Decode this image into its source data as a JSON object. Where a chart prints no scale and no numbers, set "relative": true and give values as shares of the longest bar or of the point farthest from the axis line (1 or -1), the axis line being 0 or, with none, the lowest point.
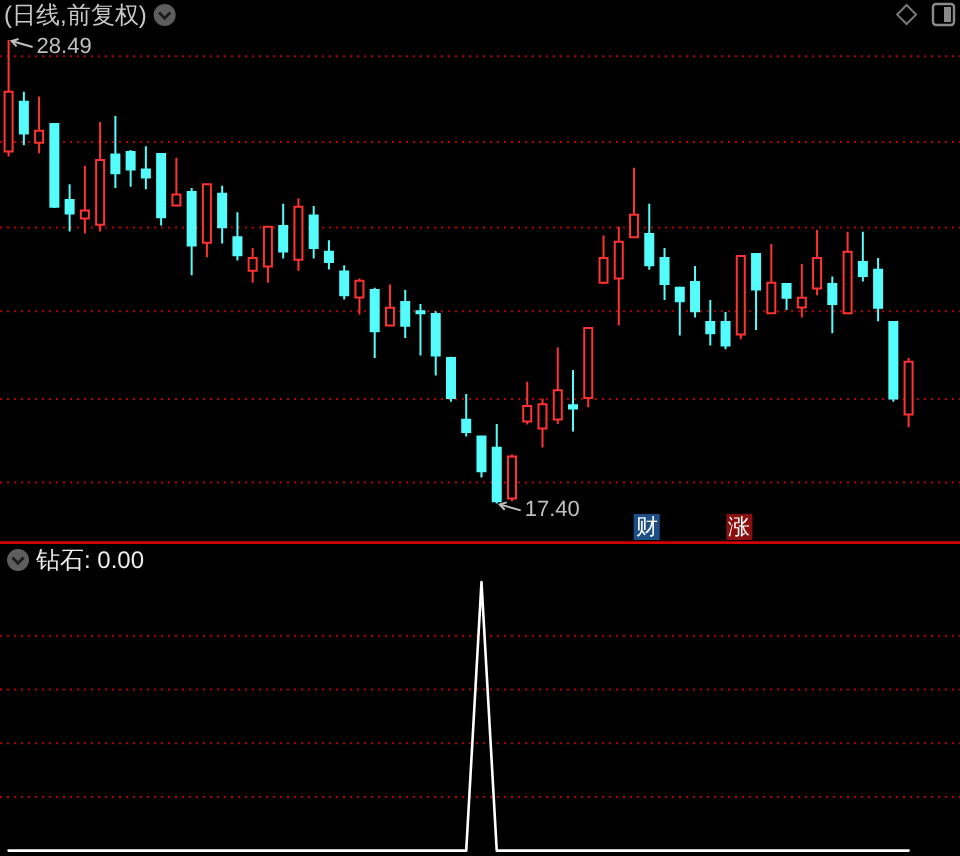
{
  "chart_data": [
    {
      "type": "candlestick",
      "title": "(日线,前复权)",
      "categories": [
        null,
        null,
        null,
        null,
        null,
        null,
        null,
        null,
        null,
        null,
        null,
        null,
        null,
        null,
        null,
        null,
        null,
        null,
        null,
        null,
        null,
        null,
        null,
        null,
        null,
        null,
        null,
        null,
        null,
        null,
        null,
        null,
        null,
        null,
        null,
        null,
        null,
        null,
        null,
        null,
        null,
        null,
        null,
        null,
        null,
        null,
        null,
        null,
        null,
        null,
        null,
        null,
        null,
        null,
        null,
        null,
        null,
        null,
        null,
        null
      ],
      "ohlc": [
        [
          25.82,
          28.49,
          25.7,
          27.25
        ],
        [
          27.01,
          27.25,
          25.97,
          26.25
        ],
        [
          26.03,
          27.14,
          25.78,
          26.32
        ],
        [
          26.48,
          26.48,
          24.47,
          24.5
        ],
        [
          24.66,
          25.04,
          23.91,
          24.34
        ],
        [
          24.22,
          25.48,
          23.86,
          24.41
        ],
        [
          24.07,
          26.53,
          23.91,
          25.62
        ],
        [
          25.75,
          26.67,
          24.95,
          25.3
        ],
        [
          25.81,
          25.86,
          24.98,
          25.39
        ],
        [
          25.39,
          25.95,
          24.92,
          25.2
        ],
        [
          25.76,
          25.76,
          24.05,
          24.25
        ],
        [
          24.53,
          25.67,
          24.53,
          24.79
        ],
        [
          24.85,
          24.95,
          22.86,
          23.57
        ],
        [
          23.64,
          25.04,
          23.29,
          25.04
        ],
        [
          24.81,
          25.0,
          23.62,
          24.01
        ],
        [
          23.77,
          24.37,
          23.21,
          23.34
        ],
        [
          22.97,
          23.51,
          22.68,
          23.27
        ],
        [
          23.07,
          24.02,
          22.68,
          24.02
        ],
        [
          24.04,
          24.57,
          23.26,
          23.43
        ],
        [
          23.23,
          24.7,
          22.97,
          24.5
        ],
        [
          24.29,
          24.52,
          23.26,
          23.51
        ],
        [
          23.42,
          23.7,
          23.0,
          23.18
        ],
        [
          22.95,
          23.1,
          22.28,
          22.38
        ],
        [
          22.33,
          22.78,
          21.92,
          22.73
        ],
        [
          22.51,
          22.56,
          20.88,
          21.52
        ],
        [
          21.66,
          22.64,
          21.66,
          22.08
        ],
        [
          22.22,
          22.51,
          21.36,
          21.65
        ],
        [
          22.0,
          22.17,
          20.94,
          21.95
        ],
        [
          21.93,
          22.0,
          20.46,
          20.94
        ],
        [
          20.88,
          20.91,
          19.83,
          19.92
        ],
        [
          19.4,
          20.02,
          19.0,
          19.11
        ],
        [
          19.0,
          19.0,
          18.02,
          18.17
        ],
        [
          18.73,
          19.3,
          17.4,
          17.45
        ],
        [
          17.52,
          18.57,
          17.45,
          18.52
        ],
        [
          19.36,
          20.31,
          19.29,
          19.73
        ],
        [
          19.19,
          19.91,
          18.74,
          19.77
        ],
        [
          19.41,
          21.13,
          19.3,
          20.11
        ],
        [
          19.75,
          20.59,
          19.12,
          19.67
        ],
        [
          19.92,
          21.6,
          19.7,
          21.6
        ],
        [
          22.68,
          23.81,
          22.65,
          23.27
        ],
        [
          22.78,
          24.02,
          21.66,
          23.66
        ],
        [
          23.77,
          25.43,
          23.77,
          24.31
        ],
        [
          23.85,
          24.57,
          22.99,
          23.1
        ],
        [
          23.27,
          23.51,
          22.27,
          22.65
        ],
        [
          22.56,
          22.59,
          21.42,
          22.24
        ],
        [
          22.7,
          23.08,
          21.85,
          22.0
        ],
        [
          21.74,
          22.27,
          21.18,
          21.47
        ],
        [
          21.74,
          21.98,
          21.09,
          21.18
        ],
        [
          21.44,
          23.32,
          21.33,
          23.32
        ],
        [
          23.37,
          23.37,
          21.55,
          22.52
        ],
        [
          21.95,
          23.61,
          21.95,
          22.68
        ],
        [
          22.65,
          22.65,
          22.03,
          22.32
        ],
        [
          22.09,
          23.13,
          21.85,
          22.32
        ],
        [
          22.54,
          23.94,
          22.38,
          23.27
        ],
        [
          22.65,
          22.83,
          21.47,
          22.17
        ],
        [
          21.95,
          23.9,
          21.95,
          23.42
        ],
        [
          23.18,
          23.9,
          22.71,
          22.84
        ],
        [
          22.99,
          23.27,
          21.76,
          22.08
        ],
        [
          21.74,
          21.74,
          19.83,
          19.91
        ],
        [
          19.53,
          20.88,
          19.22,
          20.79
        ]
      ],
      "colors": [
        "#ff3232",
        "#54fcfc",
        "#ff3232",
        "#54fcfc",
        "#54fcfc",
        "#ff3232",
        "#ff3232",
        "#54fcfc",
        "#54fcfc",
        "#54fcfc",
        "#54fcfc",
        "#ff3232",
        "#54fcfc",
        "#ff3232",
        "#54fcfc",
        "#54fcfc",
        "#ff3232",
        "#ff3232",
        "#54fcfc",
        "#ff3232",
        "#54fcfc",
        "#54fcfc",
        "#54fcfc",
        "#ff3232",
        "#54fcfc",
        "#ff3232",
        "#54fcfc",
        "#54fcfc",
        "#54fcfc",
        "#54fcfc",
        "#54fcfc",
        "#54fcfc",
        "#54fcfc",
        "#ff3232",
        "#ff3232",
        "#ff3232",
        "#ff3232",
        "#54fcfc",
        "#ff3232",
        "#ff3232",
        "#ff3232",
        "#ff3232",
        "#54fcfc",
        "#54fcfc",
        "#54fcfc",
        "#54fcfc",
        "#54fcfc",
        "#54fcfc",
        "#ff3232",
        "#54fcfc",
        "#ff3232",
        "#54fcfc",
        "#ff3232",
        "#ff3232",
        "#54fcfc",
        "#ff3232",
        "#54fcfc",
        "#54fcfc",
        "#54fcfc",
        "#ff3232"
      ],
      "ref_lines": [
        {
          "axis": "y",
          "value": 28.1,
          "color": "#b40000",
          "line_style": "dotted"
        },
        {
          "axis": "y",
          "value": 26.05,
          "color": "#b40000",
          "line_style": "dotted"
        },
        {
          "axis": "y",
          "value": 24.0,
          "color": "#b40000",
          "line_style": "dotted"
        },
        {
          "axis": "y",
          "value": 22.0,
          "color": "#b40000",
          "line_style": "dotted"
        },
        {
          "axis": "y",
          "value": 19.9,
          "color": "#b40000",
          "line_style": "dotted"
        },
        {
          "axis": "y",
          "value": 17.9,
          "color": "#b40000",
          "line_style": "dotted"
        }
      ],
      "annotations": [
        "28.49",
        "17.40",
        "财",
        "涨"
      ]
    },
    {
      "type": "line",
      "title": "钻石: 0.00",
      "relative": true,
      "categories": [
        null,
        null,
        null,
        null,
        null,
        null,
        null,
        null,
        null,
        null,
        null,
        null,
        null,
        null,
        null,
        null,
        null,
        null,
        null,
        null,
        null,
        null,
        null,
        null,
        null,
        null,
        null,
        null,
        null,
        null,
        null,
        null,
        null,
        null,
        null,
        null,
        null,
        null,
        null,
        null,
        null,
        null,
        null,
        null,
        null,
        null,
        null,
        null,
        null,
        null,
        null,
        null,
        null,
        null,
        null,
        null,
        null,
        null,
        null,
        null
      ],
      "series": [
        {
          "color": "#ffffff",
          "values": [
            0,
            0,
            0,
            0,
            0,
            0,
            0,
            0,
            0,
            0,
            0,
            0,
            0,
            0,
            0,
            0,
            0,
            0,
            0,
            0,
            0,
            0,
            0,
            0,
            0,
            0,
            0,
            0,
            0,
            0,
            0,
            1,
            0,
            0,
            0,
            0,
            0,
            0,
            0,
            0,
            0,
            0,
            0,
            0,
            0,
            0,
            0,
            0,
            0,
            0,
            0,
            0,
            0,
            0,
            0,
            0,
            0,
            0,
            0,
            0
          ]
        }
      ],
      "ref_lines": [
        {
          "axis": "y",
          "value": 0.2,
          "color": "#b40000",
          "line_style": "dotted"
        },
        {
          "axis": "y",
          "value": 0.4,
          "color": "#b40000",
          "line_style": "dotted"
        },
        {
          "axis": "y",
          "value": 0.6,
          "color": "#b40000",
          "line_style": "dotted"
        },
        {
          "axis": "y",
          "value": 0.8,
          "color": "#b40000",
          "line_style": "dotted"
        }
      ]
    }
  ]
}
